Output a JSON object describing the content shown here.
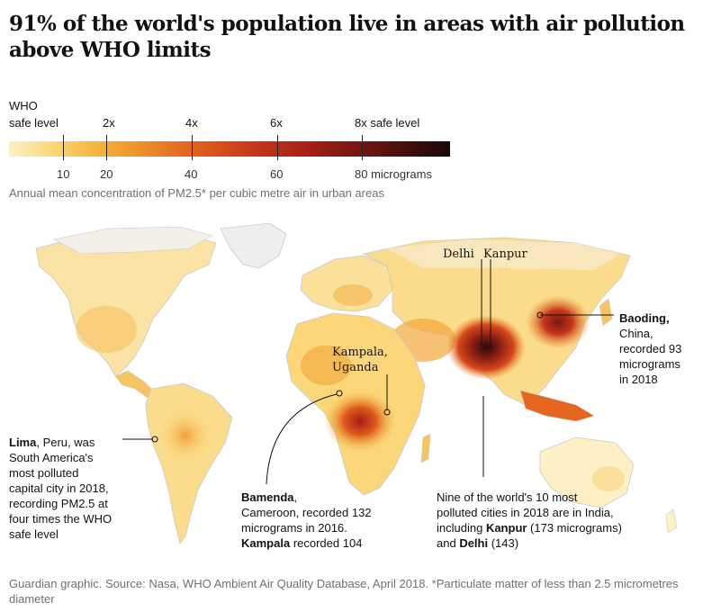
{
  "title": "91% of the world's population live in areas with air pollution above WHO limits",
  "legend": {
    "who_label_line1": "WHO",
    "who_label_line2": "safe level",
    "multiples": [
      "2x",
      "4x",
      "6x",
      "8x safe level"
    ],
    "values": [
      "10",
      "20",
      "40",
      "60",
      "80 micrograms"
    ],
    "scale_min": 0,
    "scale_max": 100,
    "color_low": "#fdf0c4",
    "color_mid": "#dd5a1c",
    "color_high": "#1a0806"
  },
  "caption": "Annual mean concentration of PM2.5* per cubic metre air in urban areas",
  "cities": {
    "delhi": "Delhi",
    "kanpur": "Kanpur",
    "kampala_line1": "Kampala,",
    "kampala_line2": "Uganda"
  },
  "annotations": {
    "baoding_name": "Baoding,",
    "baoding_rest": [
      "China,",
      "recorded 93",
      "micrograms",
      "in 2018"
    ],
    "lima_name": "Lima",
    "lima_rest_first": ", Peru, was",
    "lima_rest": [
      "South America's",
      "most polluted",
      "capital city in 2018,",
      "recording PM2.5 at",
      "four times the WHO",
      "safe level"
    ],
    "bamenda_name": "Bamenda",
    "bamenda_rest_first": ",",
    "bamenda_rest": [
      "Cameroon, recorded 132",
      "micrograms in 2016."
    ],
    "kampala_name": "Kampala",
    "kampala_rest": " recorded 104",
    "india_line1": "Nine of the world's 10 most",
    "india_line2": "polluted cities in 2018 are in India,",
    "india_line3_pre": "including ",
    "india_line3_name": "Kanpur",
    "india_line3_post": " (173 micrograms)",
    "india_line4_pre": "and ",
    "india_line4_name": "Delhi",
    "india_line4_post": " (143)"
  },
  "source": "Guardian graphic. Source: Nasa, WHO Ambient Air Quality Database, April 2018. *Particulate matter of less than 2.5 micrometres diameter"
}
